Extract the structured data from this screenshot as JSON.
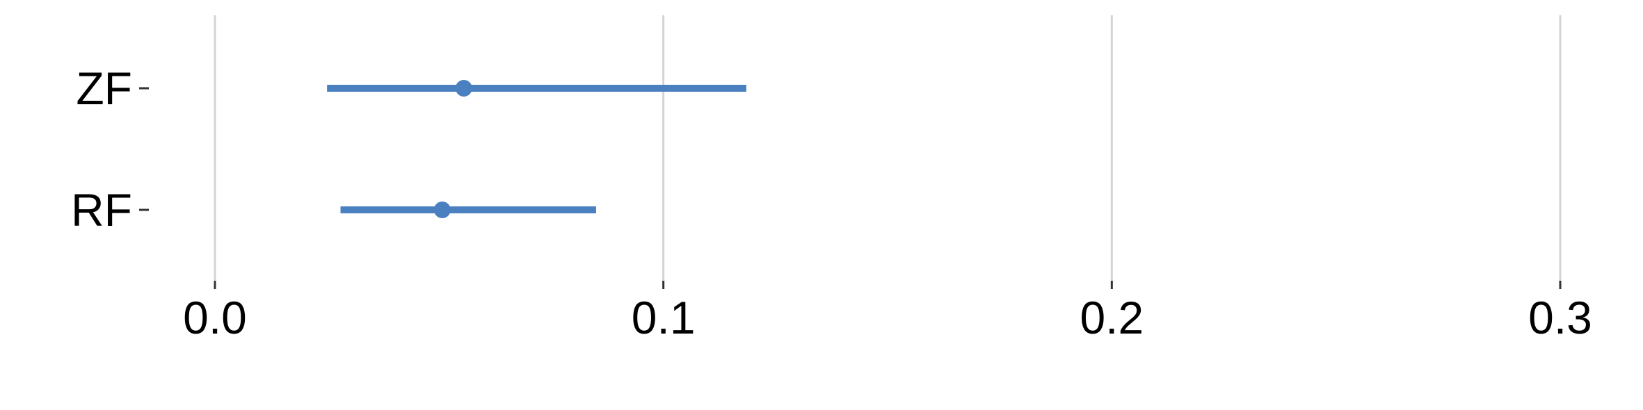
{
  "chart_data": {
    "type": "forest",
    "categories": [
      "ZF",
      "RF"
    ],
    "estimates": [
      0.0555,
      0.0507
    ],
    "ci_low": [
      0.025,
      0.028
    ],
    "ci_high": [
      0.1185,
      0.085
    ],
    "xlim": [
      0.0,
      0.3
    ],
    "x_ticks": [
      0.0,
      0.1,
      0.2,
      0.3
    ],
    "x_tick_labels": [
      "0.0",
      "0.1",
      "0.2",
      "0.3"
    ],
    "grid": "vertical",
    "title": "",
    "xlabel": "",
    "ylabel": "",
    "colors": {
      "series": "#4a80c0",
      "grid": "#d4d4d4",
      "text": "#000000"
    }
  }
}
